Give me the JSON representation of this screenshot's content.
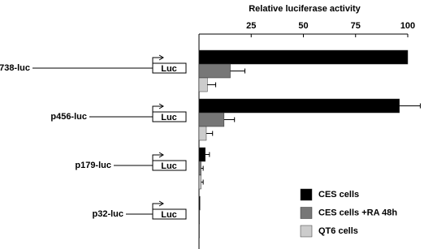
{
  "chart_data": {
    "type": "bar",
    "orientation": "horizontal",
    "xlabel": "Relative luciferase activity",
    "categories": [
      "738-luc",
      "p456-luc",
      "p179-luc",
      "p32-luc"
    ],
    "construct_label": "Luc",
    "series": [
      {
        "name": "CES cells",
        "color": "#000000",
        "values": [
          100,
          96,
          3,
          0.5
        ],
        "errors": [
          0,
          10,
          2,
          0
        ]
      },
      {
        "name": "CES cells +RA 48h",
        "color": "#777777",
        "values": [
          15,
          12,
          1,
          0.3
        ],
        "errors": [
          7,
          5,
          1,
          0
        ]
      },
      {
        "name": "QT6 cells",
        "color": "#cccccc",
        "values": [
          4,
          3.5,
          1,
          0.3
        ],
        "errors": [
          4,
          3,
          1,
          0
        ]
      }
    ],
    "xlim": [
      0,
      100
    ],
    "xticks": [
      25,
      50,
      75,
      100
    ],
    "legend": "lower right"
  }
}
